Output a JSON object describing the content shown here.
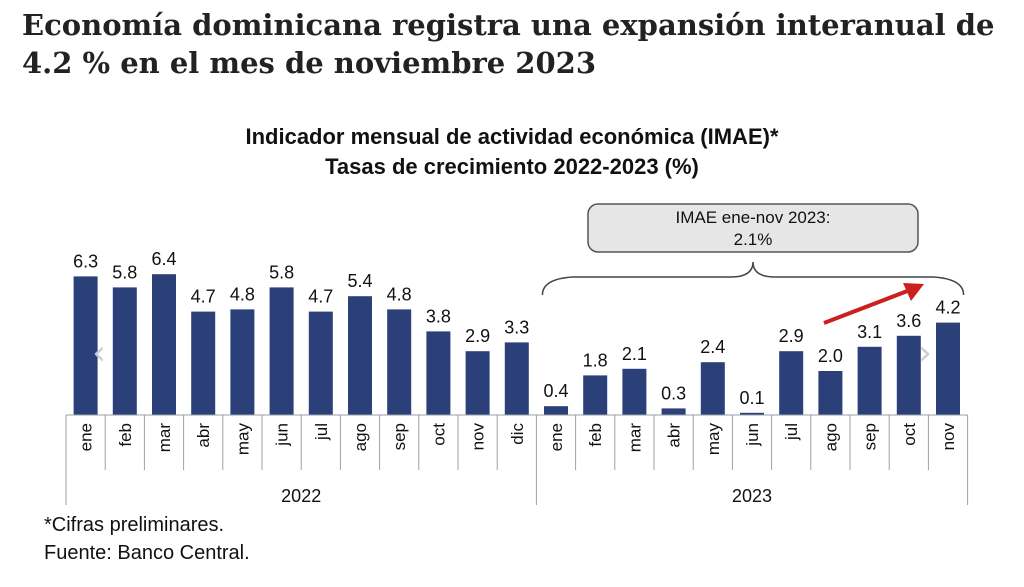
{
  "headline": "Economía dominicana registra una expansión interanual de 4.2 % en el mes de noviembre 2023",
  "chart_data": {
    "type": "bar",
    "title": "Indicador mensual de actividad económica (IMAE)*",
    "subtitle": "Tasas de crecimiento 2022-2023 (%)",
    "categories": [
      "ene",
      "feb",
      "mar",
      "abr",
      "may",
      "jun",
      "jul",
      "ago",
      "sep",
      "oct",
      "nov",
      "dic",
      "ene",
      "feb",
      "mar",
      "abr",
      "may",
      "jun",
      "jul",
      "ago",
      "sep",
      "oct",
      "nov"
    ],
    "value_labels": [
      "6.3",
      "5.8",
      "6.4",
      "4.7",
      "4.8",
      "5.8",
      "4.7",
      "5.4",
      "4.8",
      "3.8",
      "2.9",
      "3.3",
      "0.4",
      "1.8",
      "2.1",
      "0.3",
      "2.4",
      "0.1",
      "2.9",
      "2.0",
      "3.1",
      "3.6",
      "4.2"
    ],
    "values": [
      6.3,
      5.8,
      6.4,
      4.7,
      4.8,
      5.8,
      4.7,
      5.4,
      4.8,
      3.8,
      2.9,
      3.3,
      0.4,
      1.8,
      2.1,
      0.3,
      2.4,
      0.1,
      2.9,
      2.0,
      3.1,
      3.6,
      4.2
    ],
    "groups": [
      {
        "label": "2022",
        "count": 12
      },
      {
        "label": "2023",
        "count": 11
      }
    ],
    "annotation": {
      "line1": "IMAE ene-nov 2023:",
      "line2": "2.1%"
    },
    "ylim": [
      0,
      7
    ],
    "bar_color": "#2b3f78",
    "arrow_color": "#cc2020"
  },
  "footnote": "*Cifras preliminares.",
  "source": "Fuente: Banco Central.",
  "nav": {
    "prev_icon": "‹",
    "next_icon": "›"
  }
}
